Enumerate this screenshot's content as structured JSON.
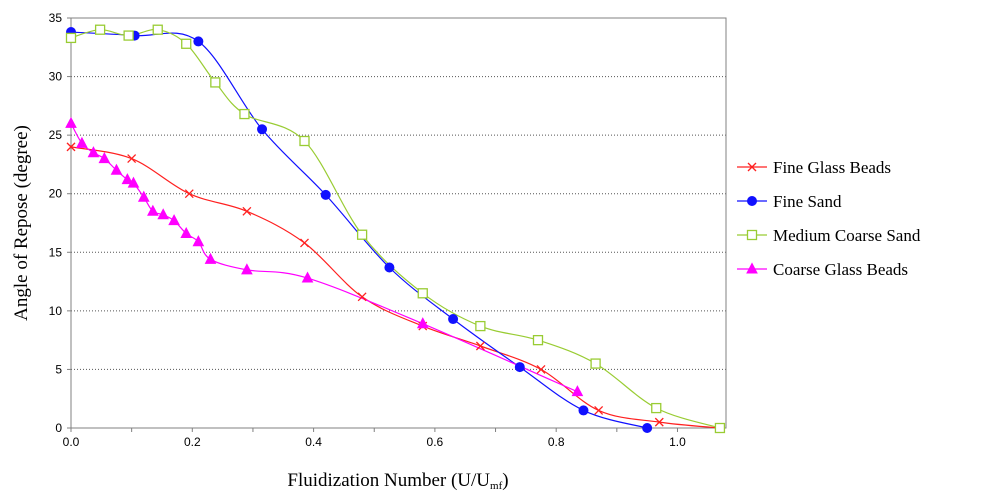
{
  "chart_data": {
    "type": "line",
    "title": "",
    "xlabel": "Fluidization Number (U/U",
    "xlabel_sub": "mf",
    "xlabel_close": ")",
    "ylabel": "Angle of Repose (degree)",
    "xlim": [
      0,
      1.08
    ],
    "ylim": [
      0,
      35
    ],
    "xticks": [
      0,
      0.2,
      0.4,
      0.6,
      0.8,
      1.0
    ],
    "xtick_labels": [
      "0.0",
      "0.2",
      "0.4",
      "0.6",
      "0.8",
      "1.0"
    ],
    "yticks": [
      0,
      5,
      10,
      15,
      20,
      25,
      30,
      35
    ],
    "ytick_labels": [
      "0",
      "5",
      "10",
      "15",
      "20",
      "25",
      "30",
      "35"
    ],
    "grid": "horizontal-dotted",
    "legend_position": "right",
    "series": [
      {
        "name": "Fine Glass Beads",
        "color": "#ff2020",
        "marker": "x",
        "points": [
          [
            0,
            24
          ],
          [
            0.1,
            23
          ],
          [
            0.195,
            20
          ],
          [
            0.29,
            18.5
          ],
          [
            0.385,
            15.8
          ],
          [
            0.48,
            11.2
          ],
          [
            0.58,
            8.7
          ],
          [
            0.675,
            7
          ],
          [
            0.775,
            5
          ],
          [
            0.87,
            1.5
          ],
          [
            0.97,
            0.5
          ],
          [
            1.07,
            0
          ]
        ]
      },
      {
        "name": "Fine Sand",
        "color": "#1010ff",
        "marker": "circle",
        "points": [
          [
            0,
            33.8
          ],
          [
            0.105,
            33.5
          ],
          [
            0.21,
            33
          ],
          [
            0.315,
            25.5
          ],
          [
            0.42,
            19.9
          ],
          [
            0.525,
            13.7
          ],
          [
            0.63,
            9.3
          ],
          [
            0.74,
            5.2
          ],
          [
            0.845,
            1.5
          ],
          [
            0.95,
            0
          ]
        ]
      },
      {
        "name": "Medium Coarse Sand",
        "color": "#99cc33",
        "marker": "square",
        "points": [
          [
            0,
            33.3
          ],
          [
            0.048,
            34
          ],
          [
            0.095,
            33.5
          ],
          [
            0.143,
            34
          ],
          [
            0.19,
            32.8
          ],
          [
            0.238,
            29.5
          ],
          [
            0.286,
            26.8
          ],
          [
            0.385,
            24.5
          ],
          [
            0.48,
            16.5
          ],
          [
            0.58,
            11.5
          ],
          [
            0.675,
            8.7
          ],
          [
            0.77,
            7.5
          ],
          [
            0.865,
            5.5
          ],
          [
            0.965,
            1.7
          ],
          [
            1.07,
            0
          ]
        ]
      },
      {
        "name": "Coarse Glass Beads",
        "color": "#ff00ff",
        "marker": "triangle",
        "points": [
          [
            0,
            26
          ],
          [
            0.018,
            24.3
          ],
          [
            0.037,
            23.5
          ],
          [
            0.055,
            23
          ],
          [
            0.075,
            22
          ],
          [
            0.093,
            21.2
          ],
          [
            0.103,
            20.9
          ],
          [
            0.12,
            19.7
          ],
          [
            0.135,
            18.5
          ],
          [
            0.152,
            18.2
          ],
          [
            0.17,
            17.7
          ],
          [
            0.19,
            16.6
          ],
          [
            0.21,
            15.9
          ],
          [
            0.23,
            14.4
          ],
          [
            0.29,
            13.5
          ],
          [
            0.39,
            12.8
          ],
          [
            0.58,
            8.9
          ],
          [
            0.835,
            3.1
          ]
        ]
      }
    ]
  }
}
